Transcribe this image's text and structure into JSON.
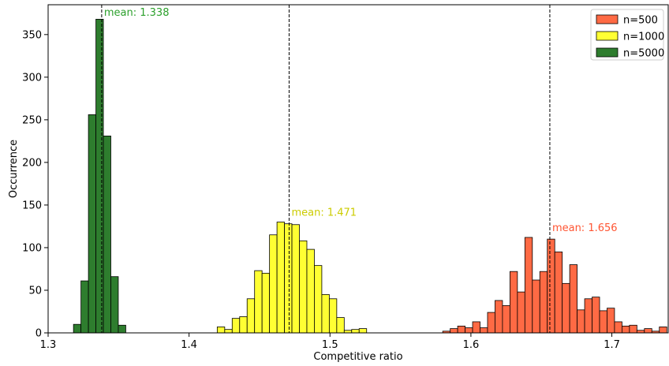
{
  "chart_data": {
    "type": "histogram",
    "xlabel": "Competitive ratio",
    "ylabel": "Occurrence",
    "xlim": [
      1.3,
      1.74
    ],
    "ylim": [
      0,
      385
    ],
    "xticks": [
      "1.3",
      "1.4",
      "1.5",
      "1.6",
      "1.7"
    ],
    "yticks": [
      "0",
      "50",
      "100",
      "150",
      "200",
      "250",
      "300",
      "350"
    ],
    "grid": false,
    "legend_position": "top-right",
    "legend": [
      "n=500",
      "n=1000",
      "n=5000"
    ],
    "series": [
      {
        "name": "n=500",
        "color": "#ff6a44",
        "bin_start": 1.58,
        "bin_width": 0.0053,
        "counts": [
          2,
          5,
          8,
          6,
          13,
          6,
          24,
          38,
          32,
          72,
          48,
          112,
          62,
          72,
          110,
          95,
          58,
          80,
          27,
          40,
          42,
          26,
          29,
          13,
          8,
          9,
          3,
          5,
          2,
          7
        ],
        "mean": 1.656,
        "mean_label": "mean: 1.656",
        "mean_label_color": "#ff5533"
      },
      {
        "name": "n=1000",
        "color": "#ffff33",
        "bin_start": 1.42,
        "bin_width": 0.0053,
        "counts": [
          7,
          4,
          17,
          19,
          40,
          73,
          70,
          115,
          130,
          128,
          127,
          108,
          98,
          79,
          45,
          40,
          18,
          3,
          4,
          5
        ],
        "mean": 1.471,
        "mean_label": "mean: 1.471",
        "mean_label_color": "#cccc00"
      },
      {
        "name": "n=5000",
        "color": "#2e7d2e",
        "bin_start": 1.318,
        "bin_width": 0.0053,
        "counts": [
          10,
          61,
          256,
          368,
          231,
          66,
          9
        ],
        "mean": 1.338,
        "mean_label": "mean: 1.338",
        "mean_label_color": "#2ca02c"
      }
    ]
  }
}
